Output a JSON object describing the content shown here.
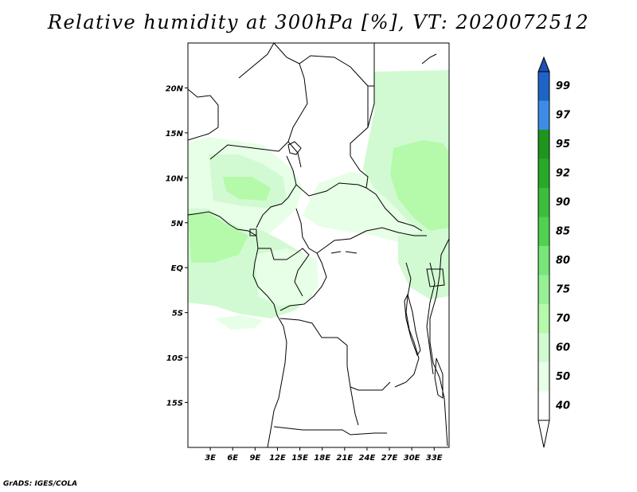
{
  "title": "Relative humidity at 300hPa [%], VT: 2020072512",
  "credit": "GrADS: IGES/COLA",
  "map": {
    "lon_range": [
      0,
      35
    ],
    "lat_range": [
      -20,
      25
    ],
    "y_ticks": [
      {
        "lat": 20,
        "label": "20N"
      },
      {
        "lat": 15,
        "label": "15N"
      },
      {
        "lat": 10,
        "label": "10N"
      },
      {
        "lat": 5,
        "label": "5N"
      },
      {
        "lat": 0,
        "label": "EQ"
      },
      {
        "lat": -5,
        "label": "5S"
      },
      {
        "lat": -10,
        "label": "10S"
      },
      {
        "lat": -15,
        "label": "15S"
      }
    ],
    "x_ticks": [
      {
        "lon": 3,
        "label": "3E"
      },
      {
        "lon": 6,
        "label": "6E"
      },
      {
        "lon": 9,
        "label": "9E"
      },
      {
        "lon": 12,
        "label": "12E"
      },
      {
        "lon": 15,
        "label": "15E"
      },
      {
        "lon": 18,
        "label": "18E"
      },
      {
        "lon": 21,
        "label": "21E"
      },
      {
        "lon": 24,
        "label": "24E"
      },
      {
        "lon": 27,
        "label": "27E"
      },
      {
        "lon": 30,
        "label": "30E"
      },
      {
        "lon": 33,
        "label": "33E"
      }
    ]
  },
  "colorbar": {
    "levels": [
      {
        "label": "99",
        "color": "#1e64c8"
      },
      {
        "label": "97",
        "color": "#3c8ce6"
      },
      {
        "label": "95",
        "color": "#1e961e"
      },
      {
        "label": "92",
        "color": "#28aa28"
      },
      {
        "label": "90",
        "color": "#3cbe3c"
      },
      {
        "label": "85",
        "color": "#50d250"
      },
      {
        "label": "80",
        "color": "#78e678"
      },
      {
        "label": "75",
        "color": "#96f096"
      },
      {
        "label": "70",
        "color": "#b4faaa"
      },
      {
        "label": "60",
        "color": "#d2fad2"
      },
      {
        "label": "50",
        "color": "#e6ffe6"
      },
      {
        "label": "40",
        "color": "#ffffff"
      }
    ],
    "top_arrow_color": "#1e50b4",
    "bottom_arrow_color": "#ffffff"
  }
}
